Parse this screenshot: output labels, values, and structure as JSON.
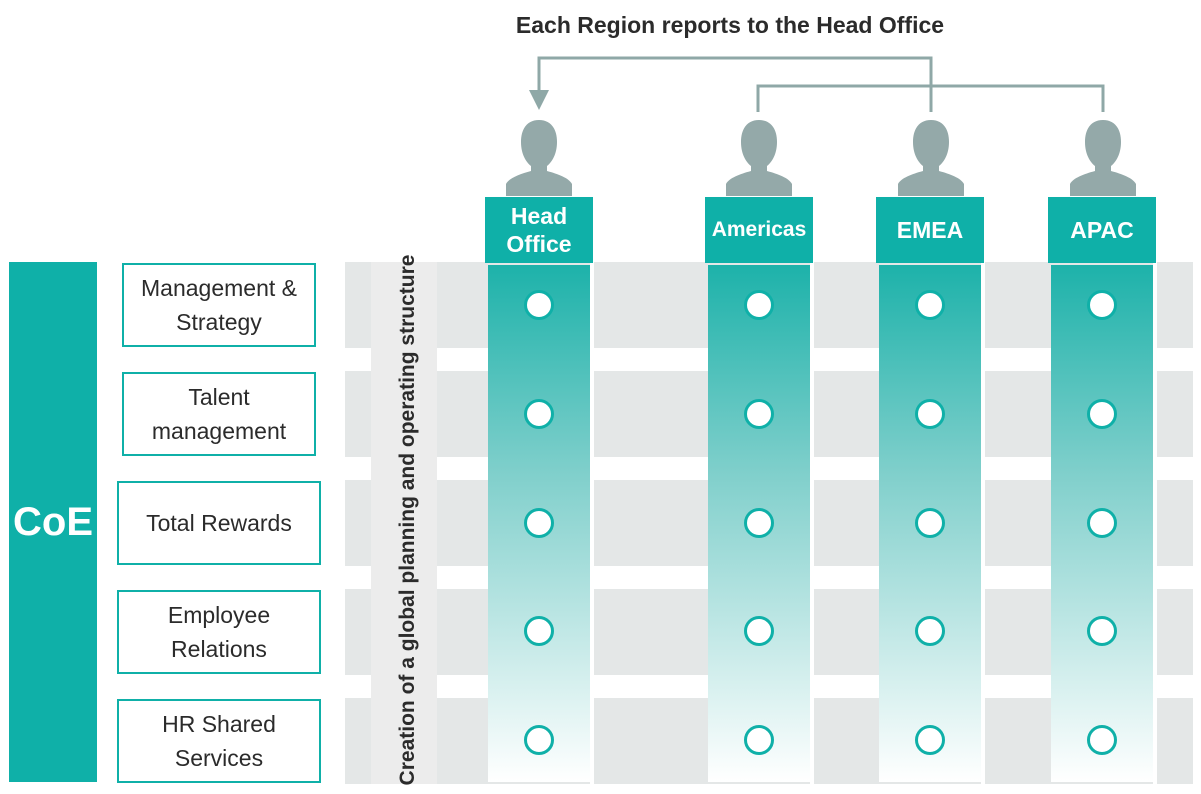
{
  "title": "Each Region reports to the Head Office",
  "side_label": "CoE",
  "vertical_label": "Creation of a global planning and operating structure",
  "regions": [
    {
      "label": "Head\nOffice"
    },
    {
      "label": "Americas"
    },
    {
      "label": "EMEA"
    },
    {
      "label": "APAC"
    }
  ],
  "functions": [
    {
      "label": "Management &\nStrategy"
    },
    {
      "label": "Talent\nmanagement"
    },
    {
      "label": "Total Rewards"
    },
    {
      "label": "Employee\nRelations"
    },
    {
      "label": "HR Shared\nServices"
    }
  ],
  "colors": {
    "accent": "#0fb0a8",
    "person": "#94a9a9",
    "band": "#e4e7e7",
    "connector": "#8fa8a7"
  },
  "icons": [
    "person-icon",
    "arrow-down-icon",
    "circle-marker-icon"
  ]
}
